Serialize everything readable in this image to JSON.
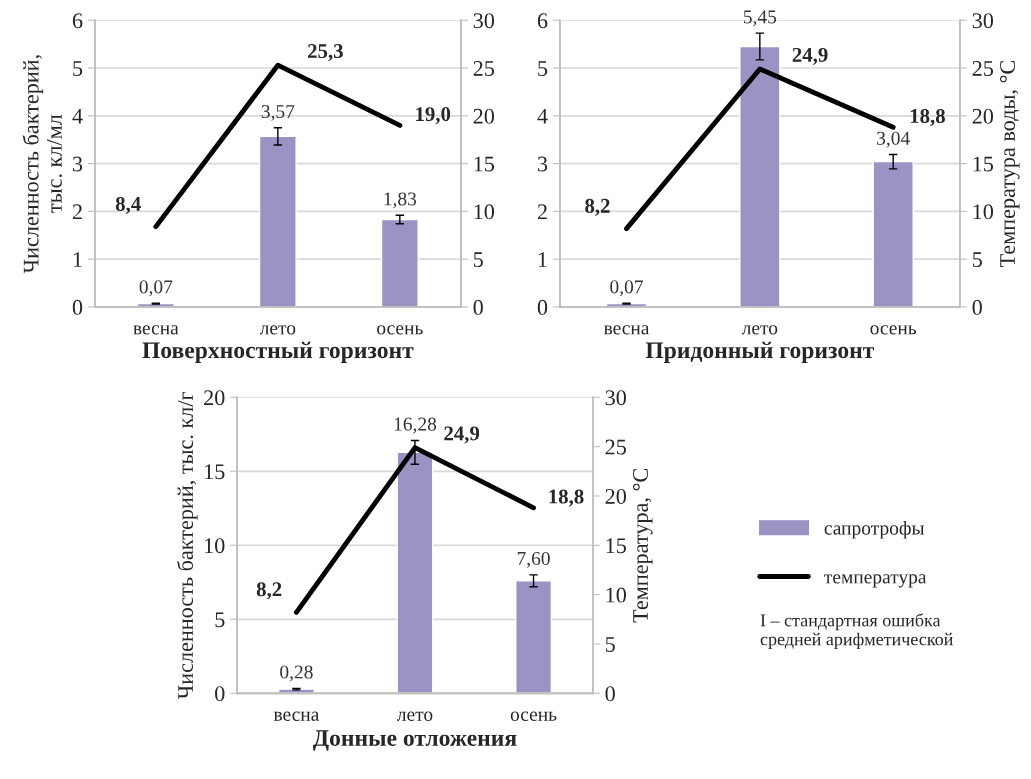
{
  "chart_data": [
    {
      "type": "bar",
      "title": "Поверхностный горизонт",
      "ylabel": "Численность бактерий,\nтыс. кл/мл",
      "categories": [
        "весна",
        "лето",
        "осень"
      ],
      "ylim": [
        0,
        6
      ],
      "yticks": [
        0,
        1,
        2,
        3,
        4,
        5,
        6
      ],
      "y2lim": [
        0,
        30
      ],
      "y2ticks": [
        0,
        5,
        10,
        15,
        20,
        25,
        30
      ],
      "grid": "y",
      "legend": false,
      "series": [
        {
          "color": "#9b93c4",
          "values": [
            0.07,
            3.57,
            1.83
          ],
          "errors": [
            0.01,
            0.18,
            0.09
          ],
          "value_labels": [
            "0,07",
            "3,57",
            "1,83"
          ]
        },
        {
          "type": "line",
          "axis": "y2",
          "color": "#000000",
          "values": [
            8.4,
            25.3,
            19.0
          ],
          "value_labels": [
            "8,4",
            "25,3",
            "19,0"
          ]
        }
      ]
    },
    {
      "type": "bar",
      "title": "Придонный горизонт",
      "y2label": "Температура воды, °С",
      "categories": [
        "весна",
        "лето",
        "осень"
      ],
      "ylim": [
        0,
        6
      ],
      "yticks": [
        0,
        1,
        2,
        3,
        4,
        5,
        6
      ],
      "y2lim": [
        0,
        30
      ],
      "y2ticks": [
        0,
        5,
        10,
        15,
        20,
        25,
        30
      ],
      "grid": "y",
      "legend": false,
      "series": [
        {
          "color": "#9b93c4",
          "values": [
            0.07,
            5.45,
            3.04
          ],
          "errors": [
            0.01,
            0.28,
            0.15
          ],
          "value_labels": [
            "0,07",
            "5,45",
            "3,04"
          ]
        },
        {
          "type": "line",
          "axis": "y2",
          "color": "#000000",
          "values": [
            8.2,
            24.9,
            18.8
          ],
          "value_labels": [
            "8,2",
            "24,9",
            "18,8"
          ]
        }
      ]
    },
    {
      "type": "bar",
      "title": "Донные отложения",
      "ylabel": "Численность бактерий, тыс. кл/г",
      "y2label": "Температура, °С",
      "categories": [
        "весна",
        "лето",
        "осень"
      ],
      "ylim": [
        0,
        20
      ],
      "yticks": [
        0,
        5,
        10,
        15,
        20
      ],
      "y2lim": [
        0,
        30
      ],
      "y2ticks": [
        0,
        5,
        10,
        15,
        20,
        25,
        30
      ],
      "grid": "y",
      "legend": "right",
      "annotations": [
        "I – стандартная ошибка\nсредней арифметической"
      ],
      "series": [
        {
          "name": "сапротрофы",
          "color": "#9b93c4",
          "values": [
            0.28,
            16.28,
            7.6
          ],
          "errors": [
            0.05,
            0.8,
            0.4
          ],
          "value_labels": [
            "0,28",
            "16,28",
            "7,60"
          ]
        },
        {
          "type": "line",
          "name": "температура",
          "axis": "y2",
          "color": "#000000",
          "values": [
            8.2,
            24.9,
            18.8
          ],
          "value_labels": [
            "8,2",
            "24,9",
            "18,8"
          ]
        }
      ]
    }
  ]
}
